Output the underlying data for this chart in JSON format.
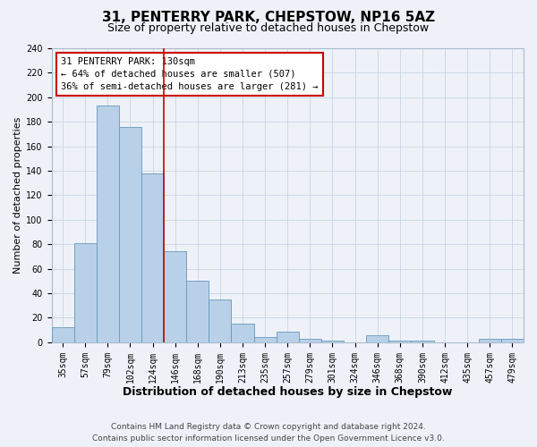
{
  "title": "31, PENTERRY PARK, CHEPSTOW, NP16 5AZ",
  "subtitle": "Size of property relative to detached houses in Chepstow",
  "xlabel": "Distribution of detached houses by size in Chepstow",
  "ylabel": "Number of detached properties",
  "bar_labels": [
    "35sqm",
    "57sqm",
    "79sqm",
    "102sqm",
    "124sqm",
    "146sqm",
    "168sqm",
    "190sqm",
    "213sqm",
    "235sqm",
    "257sqm",
    "279sqm",
    "301sqm",
    "324sqm",
    "346sqm",
    "368sqm",
    "390sqm",
    "412sqm",
    "435sqm",
    "457sqm",
    "479sqm"
  ],
  "bar_values": [
    12,
    81,
    193,
    176,
    138,
    74,
    50,
    35,
    15,
    4,
    9,
    3,
    1,
    0,
    6,
    1,
    1,
    0,
    0,
    3,
    3
  ],
  "bar_color": "#b8d0e8",
  "bar_edge_color": "#6699bb",
  "annotation_text_line1": "31 PENTERRY PARK: 130sqm",
  "annotation_text_line2": "← 64% of detached houses are smaller (507)",
  "annotation_text_line3": "36% of semi-detached houses are larger (281) →",
  "annotation_box_facecolor": "white",
  "annotation_box_edgecolor": "#cc0000",
  "vline_color": "#cc0000",
  "vline_x_bar_index": 4,
  "ylim": [
    0,
    240
  ],
  "yticks": [
    0,
    20,
    40,
    60,
    80,
    100,
    120,
    140,
    160,
    180,
    200,
    220,
    240
  ],
  "footer_line1": "Contains HM Land Registry data © Crown copyright and database right 2024.",
  "footer_line2": "Contains public sector information licensed under the Open Government Licence v3.0.",
  "bg_color": "#eef2f8",
  "grid_color": "#c8d4e4",
  "title_fontsize": 11,
  "subtitle_fontsize": 9,
  "xlabel_fontsize": 9,
  "ylabel_fontsize": 8,
  "tick_fontsize": 7,
  "annotation_fontsize": 7.5,
  "footer_fontsize": 6.5
}
